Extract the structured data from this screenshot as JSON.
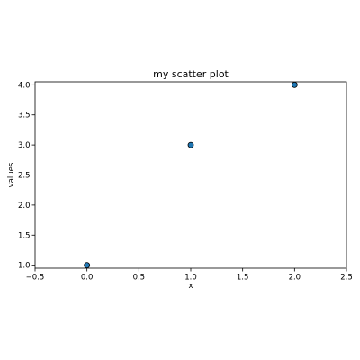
{
  "chart_data": {
    "type": "scatter",
    "title": "my scatter plot",
    "xlabel": "x",
    "ylabel": "values",
    "xlim": [
      -0.5,
      2.5
    ],
    "ylim": [
      0.95,
      4.05
    ],
    "xticks": [
      -0.5,
      0.0,
      0.5,
      1.0,
      1.5,
      2.0,
      2.5
    ],
    "xtick_labels": [
      "−0.5",
      "0.0",
      "0.5",
      "1.0",
      "1.5",
      "2.0",
      "2.5"
    ],
    "yticks": [
      1.0,
      1.5,
      2.0,
      2.5,
      3.0,
      3.5,
      4.0
    ],
    "ytick_labels": [
      "1.0",
      "1.5",
      "2.0",
      "2.5",
      "3.0",
      "3.5",
      "4.0"
    ],
    "grid": false,
    "legend": "none",
    "series": [
      {
        "x": [
          0,
          1,
          2
        ],
        "y": [
          1,
          3,
          4
        ],
        "color": "#1f77b4",
        "edgecolor": "#000000"
      }
    ]
  }
}
